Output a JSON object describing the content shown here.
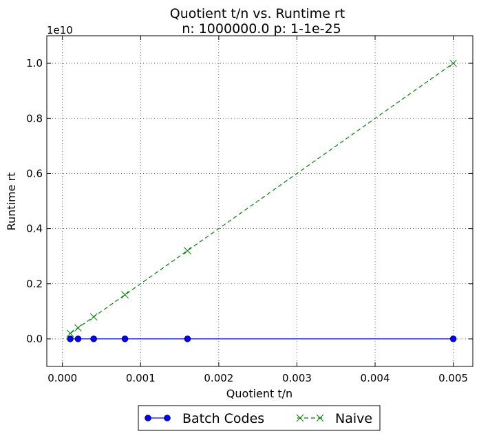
{
  "chart_data": {
    "type": "line",
    "title": "Quotient t/n vs. Runtime rt",
    "subtitle": "n: 1000000.0 p: 1-1e-25",
    "xlabel": "Quotient t/n",
    "ylabel": "Runtime rt",
    "y_offset_label": "1e10",
    "xlim": [
      -0.0002,
      0.00525
    ],
    "ylim": [
      -0.1,
      1.1
    ],
    "x_ticks": [
      0.0,
      0.001,
      0.002,
      0.003,
      0.004,
      0.005
    ],
    "x_tick_labels": [
      "0.000",
      "0.001",
      "0.002",
      "0.003",
      "0.004",
      "0.005"
    ],
    "y_ticks": [
      0.0,
      0.2,
      0.4,
      0.6,
      0.8,
      1.0
    ],
    "y_tick_labels": [
      "0.0",
      "0.2",
      "0.4",
      "0.6",
      "0.8",
      "1.0"
    ],
    "grid": true,
    "legend_position": "bottom-center",
    "series": [
      {
        "name": "Batch Codes",
        "color": "#0000ff",
        "line_style": "solid",
        "marker": "circle",
        "x": [
          0.0001,
          0.0002,
          0.0004,
          0.0008,
          0.0016,
          0.005
        ],
        "y": [
          0.0,
          0.0,
          0.0,
          0.0,
          0.0,
          0.0
        ]
      },
      {
        "name": "Naive",
        "color": "#008000",
        "line_style": "dashed",
        "marker": "x",
        "x": [
          0.0001,
          0.0002,
          0.0004,
          0.0008,
          0.0016,
          0.005
        ],
        "y": [
          0.02,
          0.04,
          0.08,
          0.16,
          0.32,
          1.0
        ]
      }
    ]
  }
}
